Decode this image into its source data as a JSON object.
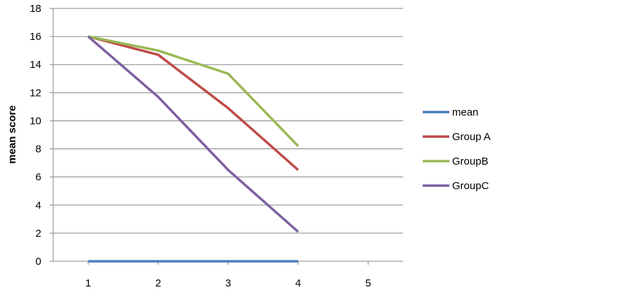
{
  "chart_data": {
    "type": "line",
    "title": "",
    "xlabel": "",
    "ylabel": "mean score",
    "x": [
      1,
      2,
      3,
      4
    ],
    "xticks": [
      "1",
      "2",
      "3",
      "4",
      "5"
    ],
    "xlim": [
      0.5,
      5.5
    ],
    "ylim": [
      0,
      18
    ],
    "yticks": [
      "0",
      "2",
      "4",
      "6",
      "8",
      "10",
      "12",
      "14",
      "16",
      "18"
    ],
    "grid": true,
    "legend_position": "right",
    "series": [
      {
        "name": "mean",
        "color": "#4a7ebb",
        "values": [
          0,
          0,
          0,
          0
        ]
      },
      {
        "name": "Group A",
        "color": "#be4b48",
        "values": [
          16,
          14.7,
          10.9,
          6.5
        ]
      },
      {
        "name": "GroupB",
        "color": "#98b954",
        "values": [
          16,
          15,
          13.35,
          8.2
        ]
      },
      {
        "name": "GroupC",
        "color": "#7d60a0",
        "values": [
          16,
          11.7,
          6.5,
          2.1
        ]
      }
    ]
  }
}
